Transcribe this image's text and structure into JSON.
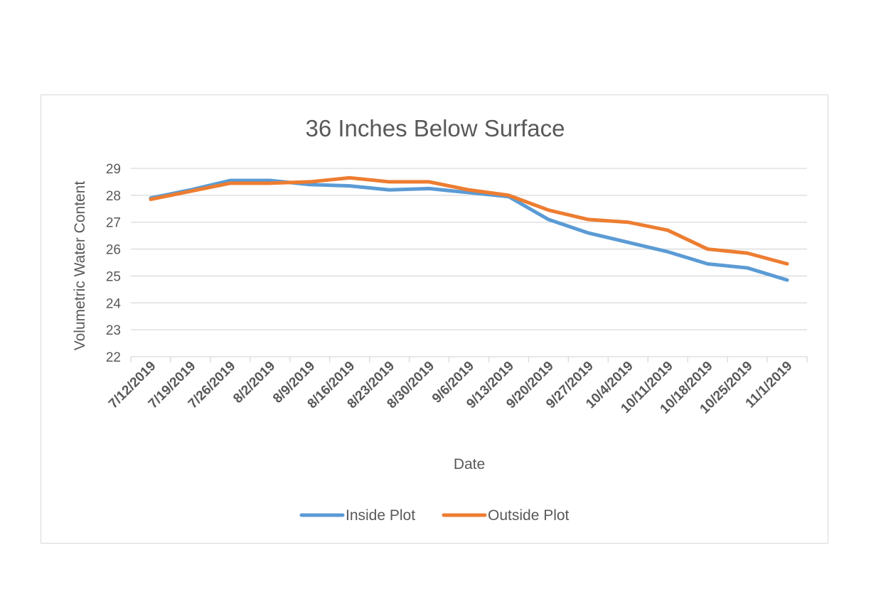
{
  "chart_data": {
    "type": "line",
    "title": "36 Inches Below Surface",
    "xlabel": "Date",
    "ylabel": "Volumetric Water Content",
    "ylim": [
      22,
      29
    ],
    "yticks": [
      "22",
      "23",
      "24",
      "25",
      "26",
      "27",
      "28",
      "29"
    ],
    "grid": true,
    "legend_position": "bottom",
    "categories": [
      "7/12/2019",
      "7/19/2019",
      "7/26/2019",
      "8/2/2019",
      "8/9/2019",
      "8/16/2019",
      "8/23/2019",
      "8/30/2019",
      "9/6/2019",
      "9/13/2019",
      "9/20/2019",
      "9/27/2019",
      "10/4/2019",
      "10/11/2019",
      "10/18/2019",
      "10/25/2019",
      "11/1/2019"
    ],
    "series": [
      {
        "name": "Inside Plot",
        "color": "#5b9bd5",
        "values": [
          27.9,
          28.2,
          28.55,
          28.55,
          28.4,
          28.35,
          28.2,
          28.25,
          28.1,
          27.95,
          27.1,
          26.6,
          26.25,
          25.9,
          25.45,
          25.3,
          24.85
        ]
      },
      {
        "name": "Outside Plot",
        "color": "#ed7d31",
        "values": [
          27.85,
          28.15,
          28.45,
          28.45,
          28.5,
          28.65,
          28.5,
          28.5,
          28.2,
          28.0,
          27.45,
          27.1,
          27.0,
          26.7,
          26.0,
          25.85,
          25.45
        ]
      }
    ]
  }
}
